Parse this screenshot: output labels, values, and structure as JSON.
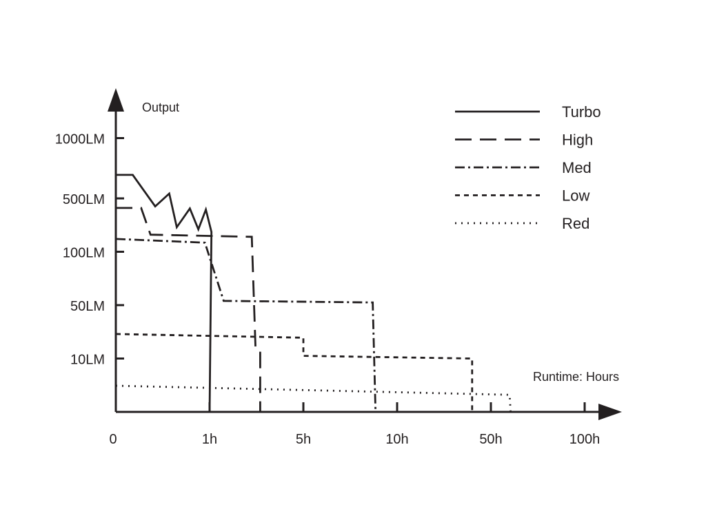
{
  "chart_data": {
    "type": "line",
    "title": "",
    "ylabel": "Output",
    "xlabel": "Runtime: Hours",
    "x_ticks": [
      "0",
      "1h",
      "5h",
      "10h",
      "50h",
      "100h"
    ],
    "y_ticks": [
      "10LM",
      "50LM",
      "100LM",
      "500LM",
      "1000LM"
    ],
    "axis_note": "Both axes use ordinal tick positions; point coordinates are in tick-index units (x: 0=0,1=1h,2=5h,3=10h,4=50h,5=100h; y: 0=origin,1=10LM,2=50LM,3=100LM,4=500LM,5=1000LM)",
    "xlim": [
      0,
      5.3
    ],
    "ylim": [
      0,
      5.9
    ],
    "grid": false,
    "legend_position": "top-right",
    "color": "#231f20",
    "series": [
      {
        "name": "Turbo",
        "dash": "solid",
        "points": [
          [
            0,
            4.44
          ],
          [
            0.18,
            4.44
          ],
          [
            0.42,
            3.85
          ],
          [
            0.57,
            4.09
          ],
          [
            0.65,
            3.46
          ],
          [
            0.79,
            3.81
          ],
          [
            0.88,
            3.42
          ],
          [
            0.96,
            3.79
          ],
          [
            1.02,
            3.37
          ],
          [
            1.0,
            0
          ]
        ]
      },
      {
        "name": "High",
        "dash": "long",
        "points": [
          [
            0,
            3.82
          ],
          [
            0.27,
            3.82
          ],
          [
            0.37,
            3.32
          ],
          [
            1.45,
            3.28
          ],
          [
            1.49,
            1.2
          ],
          [
            1.54,
            1.16
          ],
          [
            1.54,
            0
          ]
        ]
      },
      {
        "name": "Med",
        "dash": "dashdot",
        "points": [
          [
            0,
            3.24
          ],
          [
            0.95,
            3.17
          ],
          [
            1.15,
            2.08
          ],
          [
            2.74,
            2.05
          ],
          [
            2.77,
            0
          ]
        ]
      },
      {
        "name": "Low",
        "dash": "short",
        "points": [
          [
            0,
            1.46
          ],
          [
            2.0,
            1.39
          ],
          [
            2.0,
            1.05
          ],
          [
            3.8,
            1.0
          ],
          [
            3.8,
            0
          ]
        ]
      },
      {
        "name": "Red",
        "dash": "dotted",
        "points": [
          [
            0,
            0.49
          ],
          [
            4.2,
            0.32
          ],
          [
            4.21,
            0
          ]
        ]
      }
    ]
  }
}
